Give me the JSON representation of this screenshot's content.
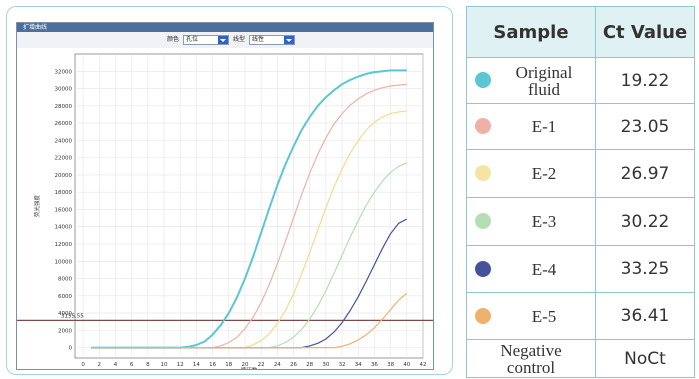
{
  "window": {
    "title": "扩增曲线",
    "color_label": "颜色",
    "color_value": "孔位",
    "linetype_label": "线型",
    "linetype_value": "线性"
  },
  "chart_data": {
    "type": "line",
    "ylabel": "荧光强度",
    "xlabel": "循环数",
    "xlim": [
      -1,
      42
    ],
    "ylim": [
      -1200,
      34000
    ],
    "x_ticks": [
      0,
      2,
      4,
      6,
      8,
      10,
      12,
      14,
      16,
      18,
      20,
      22,
      24,
      26,
      28,
      30,
      32,
      34,
      36,
      38,
      40,
      42
    ],
    "y_ticks": [
      0,
      2000,
      4000,
      6000,
      8000,
      10000,
      12000,
      14000,
      16000,
      18000,
      20000,
      22000,
      24000,
      26000,
      28000,
      30000,
      32000
    ],
    "grid": true,
    "threshold": {
      "value": 3155,
      "label": "3155.55",
      "color": "#7d4a4a"
    },
    "series": [
      {
        "name": "Original fluid",
        "color": "#5cc6d2",
        "x": [
          1,
          12,
          13,
          14,
          15,
          16,
          17,
          18,
          19,
          20,
          21,
          22,
          23,
          24,
          25,
          26,
          27,
          28,
          29,
          30,
          31,
          32,
          33,
          34,
          35,
          36,
          37,
          38,
          39,
          40
        ],
        "y": [
          0,
          0,
          100,
          300,
          700,
          1500,
          2600,
          4000,
          5800,
          8000,
          10500,
          13300,
          16100,
          18800,
          21200,
          23300,
          25200,
          26700,
          28000,
          29000,
          29800,
          30500,
          31000,
          31400,
          31700,
          31900,
          32000,
          32100,
          32100,
          32100
        ]
      },
      {
        "name": "E-1",
        "color": "#eeb1a6",
        "x": [
          1,
          16,
          17,
          18,
          19,
          20,
          21,
          22,
          23,
          24,
          25,
          26,
          27,
          28,
          29,
          30,
          31,
          32,
          33,
          34,
          35,
          36,
          37,
          38,
          39,
          40
        ],
        "y": [
          0,
          0,
          200,
          600,
          1200,
          2200,
          3500,
          5200,
          7300,
          9700,
          12300,
          15000,
          17700,
          20200,
          22400,
          24300,
          25900,
          27100,
          28100,
          28800,
          29400,
          29800,
          30100,
          30300,
          30400,
          30500
        ]
      },
      {
        "name": "E-2",
        "color": "#f7d98e",
        "x": [
          1,
          20,
          21,
          22,
          23,
          24,
          25,
          26,
          27,
          28,
          29,
          30,
          31,
          32,
          33,
          34,
          35,
          36,
          37,
          38,
          39,
          40
        ],
        "y": [
          0,
          0,
          300,
          800,
          1600,
          2800,
          4300,
          6200,
          8500,
          11000,
          13600,
          16200,
          18600,
          20700,
          22500,
          24000,
          25200,
          26100,
          26700,
          27100,
          27300,
          27400
        ]
      },
      {
        "name": "E-3",
        "color": "#b6deb4",
        "x": [
          1,
          23,
          24,
          25,
          26,
          27,
          28,
          29,
          30,
          31,
          32,
          33,
          34,
          35,
          36,
          37,
          38,
          39,
          40
        ],
        "y": [
          0,
          0,
          200,
          600,
          1200,
          2100,
          3300,
          4800,
          6600,
          8600,
          10700,
          12800,
          14700,
          16500,
          18000,
          19300,
          20300,
          21000,
          21400
        ]
      },
      {
        "name": "E-4",
        "color": "#44529e",
        "x": [
          1,
          27,
          28,
          29,
          30,
          31,
          32,
          33,
          34,
          35,
          36,
          37,
          38,
          39,
          40
        ],
        "y": [
          0,
          0,
          200,
          500,
          1000,
          1800,
          2900,
          4300,
          5900,
          7700,
          9600,
          11500,
          13200,
          14400,
          14900
        ]
      },
      {
        "name": "E-5",
        "color": "#efb26e",
        "x": [
          1,
          31,
          32,
          33,
          34,
          35,
          36,
          37,
          38,
          39,
          40
        ],
        "y": [
          0,
          0,
          150,
          450,
          900,
          1500,
          2300,
          3300,
          4400,
          5500,
          6300
        ]
      }
    ]
  },
  "table": {
    "headers": {
      "sample": "Sample",
      "ct": "Ct Value"
    },
    "rows": [
      {
        "name_line1": "Original",
        "name_line2": "fluid",
        "ct": "19.22",
        "color": "#5cc6d2"
      },
      {
        "name_line1": "E-1",
        "name_line2": "",
        "ct": "23.05",
        "color": "#eeb1a6"
      },
      {
        "name_line1": "E-2",
        "name_line2": "",
        "ct": "26.97",
        "color": "#f7e3a4"
      },
      {
        "name_line1": "E-3",
        "name_line2": "",
        "ct": "30.22",
        "color": "#b6deb4"
      },
      {
        "name_line1": "E-4",
        "name_line2": "",
        "ct": "33.25",
        "color": "#44529e"
      },
      {
        "name_line1": "E-5",
        "name_line2": "",
        "ct": "36.41",
        "color": "#efb26e"
      },
      {
        "name_line1": "Negative",
        "name_line2": "control",
        "ct": "NoCt",
        "color": ""
      }
    ]
  }
}
